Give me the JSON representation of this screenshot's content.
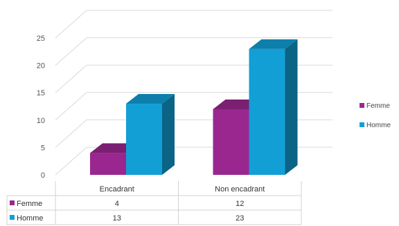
{
  "chart_data": {
    "type": "bar",
    "categories": [
      "Encadrant",
      "Non encadrant"
    ],
    "series": [
      {
        "name": "Femme",
        "values": [
          4,
          12
        ],
        "color": "#99278f"
      },
      {
        "name": "Homme",
        "values": [
          13,
          23
        ],
        "color": "#129fd6"
      }
    ],
    "y_ticks": [
      0,
      5,
      10,
      15,
      20,
      25
    ],
    "ylim": [
      0,
      25
    ],
    "grid": true,
    "three_d": true,
    "legend_position": "right",
    "data_table": true,
    "title": "",
    "xlabel": "",
    "ylabel": ""
  }
}
